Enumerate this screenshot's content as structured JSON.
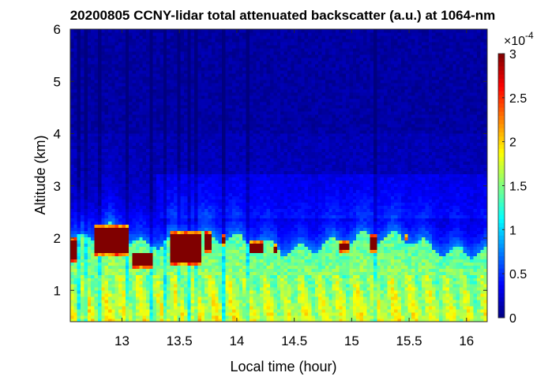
{
  "chart_data": {
    "type": "heatmap",
    "title": "20200805 CCNY-lidar total attenuated backscatter (a.u.) at 1064-nm",
    "xlabel": "Local time (hour)",
    "ylabel": "Altitude (km)",
    "xlim": [
      12.55,
      16.18
    ],
    "ylim": [
      0.4,
      6.0
    ],
    "xticks": [
      13,
      13.5,
      14,
      14.5,
      15,
      15.5,
      16
    ],
    "xtick_labels": [
      "13",
      "13.5",
      "14",
      "14.5",
      "15",
      "15.5",
      "16"
    ],
    "yticks": [
      1,
      2,
      3,
      4,
      5,
      6
    ],
    "ytick_labels": [
      "1",
      "2",
      "3",
      "4",
      "5",
      "6"
    ],
    "colorbar": {
      "colormap": "jet",
      "range": [
        0,
        3
      ],
      "ticks": [
        0,
        0.5,
        1,
        1.5,
        2,
        2.5,
        3
      ],
      "tick_labels": [
        "0",
        "0.5",
        "1",
        "1.5",
        "2",
        "2.5",
        "3"
      ],
      "exponent_label": "×10",
      "exponent_power": "-4"
    },
    "boundary_layer_top_km": [
      {
        "x": 12.6,
        "top": 1.95
      },
      {
        "x": 12.9,
        "top": 2.2
      },
      {
        "x": 13.2,
        "top": 1.85
      },
      {
        "x": 13.5,
        "top": 2.05
      },
      {
        "x": 13.8,
        "top": 2.05
      },
      {
        "x": 14.1,
        "top": 1.95
      },
      {
        "x": 14.5,
        "top": 1.75
      },
      {
        "x": 14.9,
        "top": 1.95
      },
      {
        "x": 15.2,
        "top": 2.05
      },
      {
        "x": 15.5,
        "top": 2.0
      },
      {
        "x": 15.8,
        "top": 1.75
      },
      {
        "x": 16.15,
        "top": 1.75
      }
    ],
    "aerosol_layer_km": {
      "bottom": 2.4,
      "top": 3.2
    },
    "saturated_features": [
      {
        "x_start": 12.55,
        "x_end": 12.6,
        "bottom": 1.55,
        "top": 2.0
      },
      {
        "x_start": 12.75,
        "x_end": 13.05,
        "bottom": 1.65,
        "top": 2.25
      },
      {
        "x_start": 13.1,
        "x_end": 13.27,
        "bottom": 1.45,
        "top": 1.75
      },
      {
        "x_start": 13.43,
        "x_end": 13.7,
        "bottom": 1.5,
        "top": 2.15
      },
      {
        "x_start": 13.72,
        "x_end": 13.77,
        "bottom": 1.75,
        "top": 2.15
      },
      {
        "x_start": 13.87,
        "x_end": 13.91,
        "bottom": 1.85,
        "top": 2.1
      },
      {
        "x_start": 14.12,
        "x_end": 14.22,
        "bottom": 1.7,
        "top": 1.95
      },
      {
        "x_start": 14.31,
        "x_end": 14.35,
        "bottom": 1.7,
        "top": 1.9
      },
      {
        "x_start": 14.9,
        "x_end": 14.99,
        "bottom": 1.75,
        "top": 1.95
      },
      {
        "x_start": 15.15,
        "x_end": 15.23,
        "bottom": 1.75,
        "top": 2.1
      },
      {
        "x_start": 15.47,
        "x_end": 15.5,
        "bottom": 1.95,
        "top": 2.1
      }
    ],
    "streak_columns_hour": [
      12.63,
      12.68,
      12.8,
      12.88,
      12.97,
      13.05,
      13.12,
      13.18,
      13.25,
      13.37,
      13.5,
      13.58,
      13.65,
      13.72,
      13.88,
      14.1,
      15.2
    ],
    "grid": false
  }
}
